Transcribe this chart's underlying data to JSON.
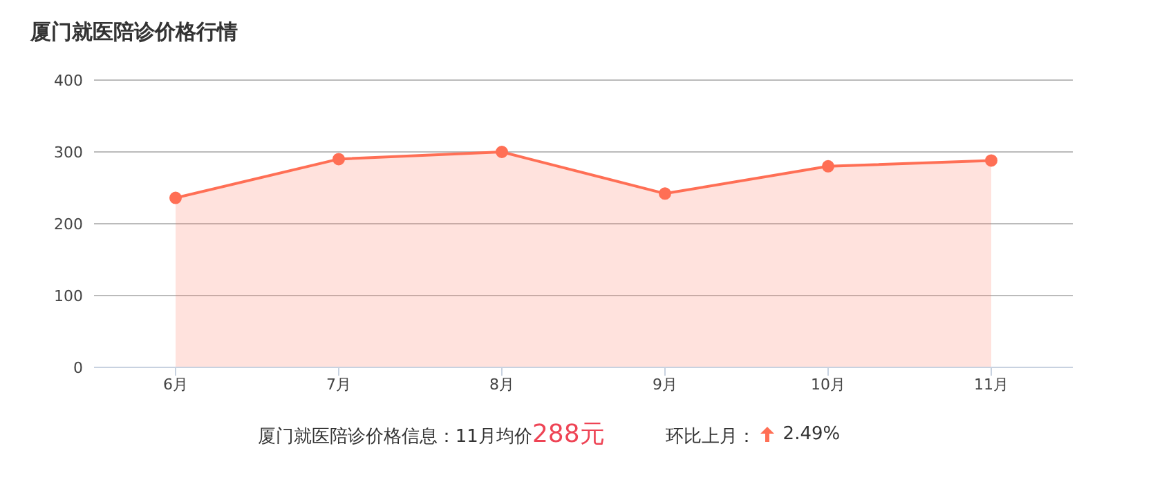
{
  "chart_data": {
    "type": "area",
    "title": "厦门就医陪诊价格行情",
    "categories": [
      "6月",
      "7月",
      "8月",
      "9月",
      "10月",
      "11月"
    ],
    "series": [
      {
        "color": "#ff6f55",
        "values": [
          236,
          290,
          300,
          242,
          280,
          288
        ]
      }
    ],
    "ylim": [
      0,
      400
    ],
    "yticks": [
      0,
      100,
      200,
      300,
      400
    ],
    "grid": "y",
    "marker": "circle",
    "annotations": [
      "厦门就医陪诊价格信息：11月均价",
      "288元",
      "环比上月：",
      "2.49%"
    ]
  }
}
